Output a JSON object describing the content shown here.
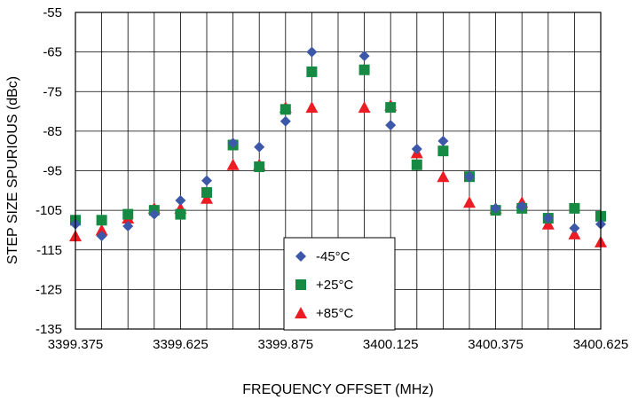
{
  "chart_data": {
    "type": "scatter",
    "title": "",
    "xlabel": "FREQUENCY OFFSET (MHz)",
    "ylabel": "STEP SIZE SPURIOUS (dBc)",
    "xlim": [
      3399.375,
      3400.625
    ],
    "ylim": [
      -135,
      -55
    ],
    "x_ticks": [
      3399.375,
      3399.625,
      3399.875,
      3400.125,
      3400.375,
      3400.625
    ],
    "x_tick_labels": [
      "3399.375",
      "3399.625",
      "3399.875",
      "3400.125",
      "3400.375",
      "3400.625"
    ],
    "y_ticks": [
      -55,
      -65,
      -75,
      -85,
      -95,
      -105,
      -115,
      -125,
      -135
    ],
    "y_tick_labels": [
      "-55",
      "-65",
      "-75",
      "-85",
      "-95",
      "-105",
      "-115",
      "-125",
      "-135"
    ],
    "grid": true,
    "legend_position": "bottom-center",
    "x": [
      3399.375,
      3399.4375,
      3399.5,
      3399.5625,
      3399.625,
      3399.6875,
      3399.75,
      3399.8125,
      3399.875,
      3399.9375,
      3400.0625,
      3400.125,
      3400.1875,
      3400.25,
      3400.3125,
      3400.375,
      3400.4375,
      3400.5,
      3400.5625,
      3400.625
    ],
    "series": [
      {
        "name": "-45°C",
        "marker": "diamond",
        "color": "#3d58a8",
        "values": [
          -108.5,
          -111.5,
          -109,
          -106,
          -102.5,
          -97.5,
          -88,
          -89,
          -82.5,
          -65,
          -66,
          -83.5,
          -89.5,
          -87.5,
          -96.5,
          -104.5,
          -104,
          -107,
          -109.5,
          -108.5
        ]
      },
      {
        "name": "+25°C",
        "marker": "square",
        "color": "#168a43",
        "values": [
          -107.5,
          -107.5,
          -106,
          -105,
          -106,
          -100.5,
          -88.5,
          -94,
          -79.5,
          -70,
          -69.5,
          -79,
          -93.5,
          -90,
          -96.5,
          -105,
          -104.5,
          -107,
          -104.5,
          -106.5
        ]
      },
      {
        "name": "+85°C",
        "marker": "triangle",
        "color": "#ed1c24",
        "values": [
          -111.5,
          -110,
          -107,
          -104.5,
          -104.5,
          -102,
          -93.5,
          -93.5,
          -79,
          -79,
          -79,
          -78.5,
          -90.5,
          -96.5,
          -103,
          -104.5,
          -103,
          -108.5,
          -111,
          -113
        ]
      }
    ]
  }
}
